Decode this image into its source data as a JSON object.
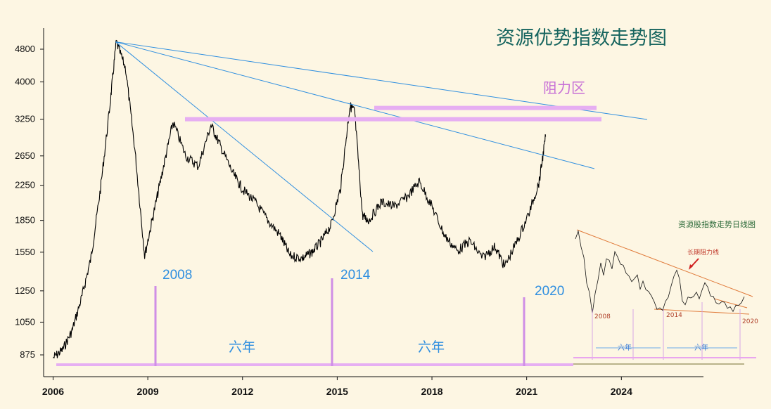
{
  "chart_data": {
    "type": "line",
    "title": "资源优势指数走势图",
    "y_scale": "log",
    "ylim": [
      800,
      5500
    ],
    "yticks": [
      "875",
      "1050",
      "1250",
      "1550",
      "1850",
      "2250",
      "2650",
      "3250",
      "4000",
      "4800"
    ],
    "xlim": [
      2005.7,
      2026.6
    ],
    "xticks": [
      "2006",
      "2009",
      "2012",
      "2015",
      "2018",
      "2021",
      "2024"
    ],
    "series": [
      {
        "values_x": [
          2006.0,
          2006.3,
          2006.6,
          2006.9,
          2007.2,
          2007.5,
          2007.8,
          2008.0,
          2008.3,
          2008.6,
          2008.9,
          2009.2,
          2009.5,
          2009.8,
          2010.2,
          2010.6,
          2011.0,
          2011.3,
          2011.7,
          2012.0,
          2012.4,
          2012.8,
          2013.2,
          2013.5,
          2013.9,
          2014.2,
          2014.5,
          2014.8,
          2015.1,
          2015.4,
          2015.55,
          2015.8,
          2016.0,
          2016.4,
          2016.8,
          2017.2,
          2017.6,
          2018.0,
          2018.4,
          2018.8,
          2019.2,
          2019.6,
          2020.0,
          2020.3,
          2020.7,
          2021.1,
          2021.4,
          2021.6
        ],
        "values_y": [
          860,
          900,
          1000,
          1200,
          1500,
          2200,
          3500,
          5000,
          4300,
          2700,
          1520,
          1950,
          2500,
          3200,
          2650,
          2500,
          3150,
          2800,
          2400,
          2200,
          2050,
          1850,
          1700,
          1520,
          1500,
          1550,
          1650,
          1800,
          2200,
          3500,
          3400,
          1900,
          1850,
          2050,
          2000,
          2100,
          2300,
          2000,
          1700,
          1560,
          1650,
          1500,
          1600,
          1430,
          1650,
          1950,
          2300,
          2950
        ]
      }
    ],
    "resistance_label": "阻力区",
    "resistance_levels": [
      3250,
      3460
    ],
    "annotations": {
      "lows": [
        "2008",
        "2014",
        "2020"
      ],
      "intervals": [
        "六年",
        "六年"
      ]
    }
  },
  "inset": {
    "title": "资源股指数走势日线图",
    "arrow_label": "长期阻力线",
    "years": [
      "2008",
      "2014",
      "2020"
    ],
    "intervals": [
      "六年",
      "六年"
    ]
  }
}
